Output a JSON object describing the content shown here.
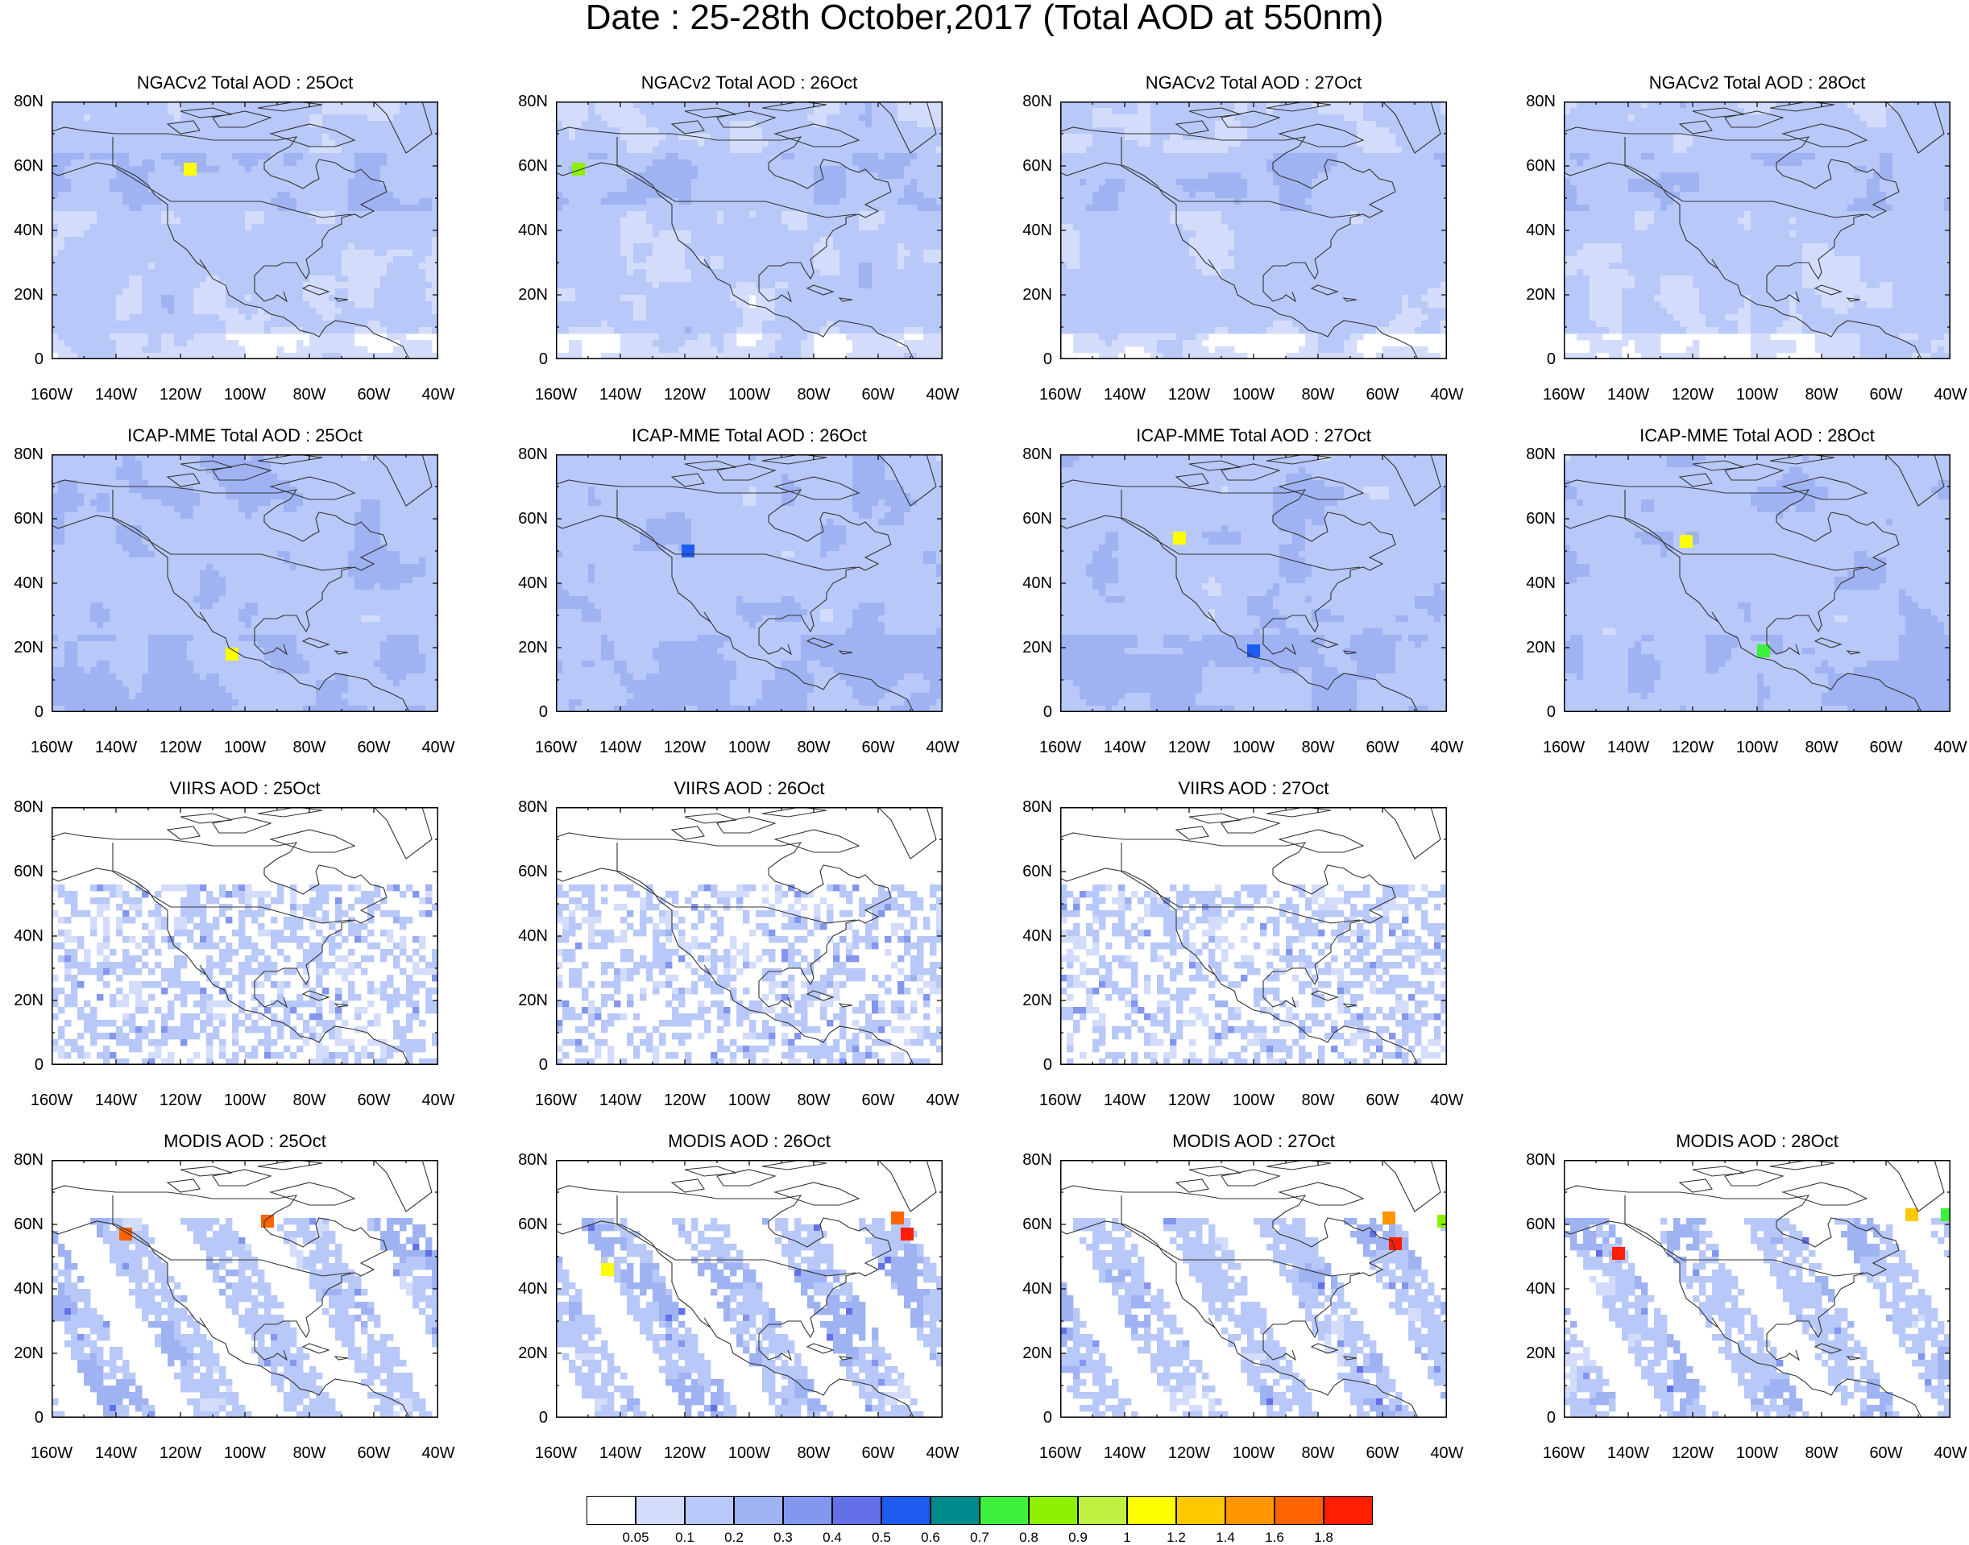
{
  "title": "Date : 25-28th October,2017 (Total AOD at 550nm)",
  "lat_ticks": [
    "80N",
    "60N",
    "40N",
    "20N",
    "0"
  ],
  "lon_ticks": [
    "160W",
    "140W",
    "120W",
    "100W",
    "80W",
    "60W",
    "40W"
  ],
  "panels": [
    {
      "row": 0,
      "col": 0,
      "title": "NGACv2 Total AOD : 25Oct",
      "dataset": "ngac",
      "day": 25
    },
    {
      "row": 0,
      "col": 1,
      "title": "NGACv2 Total AOD : 26Oct",
      "dataset": "ngac",
      "day": 26
    },
    {
      "row": 0,
      "col": 2,
      "title": "NGACv2 Total AOD : 27Oct",
      "dataset": "ngac",
      "day": 27
    },
    {
      "row": 0,
      "col": 3,
      "title": "NGACv2 Total AOD : 28Oct",
      "dataset": "ngac",
      "day": 28
    },
    {
      "row": 1,
      "col": 0,
      "title": "ICAP-MME Total AOD : 25Oct",
      "dataset": "icap",
      "day": 25
    },
    {
      "row": 1,
      "col": 1,
      "title": "ICAP-MME Total AOD : 26Oct",
      "dataset": "icap",
      "day": 26
    },
    {
      "row": 1,
      "col": 2,
      "title": "ICAP-MME Total AOD : 27Oct",
      "dataset": "icap",
      "day": 27
    },
    {
      "row": 1,
      "col": 3,
      "title": "ICAP-MME Total AOD : 28Oct",
      "dataset": "icap",
      "day": 28
    },
    {
      "row": 2,
      "col": 0,
      "title": "VIIRS AOD : 25Oct",
      "dataset": "viirs",
      "day": 25
    },
    {
      "row": 2,
      "col": 1,
      "title": "VIIRS AOD : 26Oct",
      "dataset": "viirs",
      "day": 26
    },
    {
      "row": 2,
      "col": 2,
      "title": "VIIRS AOD : 27Oct",
      "dataset": "viirs",
      "day": 27
    },
    {
      "row": 3,
      "col": 0,
      "title": "MODIS AOD : 25Oct",
      "dataset": "modis",
      "day": 25
    },
    {
      "row": 3,
      "col": 1,
      "title": "MODIS AOD : 26Oct",
      "dataset": "modis",
      "day": 26
    },
    {
      "row": 3,
      "col": 2,
      "title": "MODIS AOD : 27Oct",
      "dataset": "modis",
      "day": 27
    },
    {
      "row": 3,
      "col": 3,
      "title": "MODIS AOD : 28Oct",
      "dataset": "modis",
      "day": 28
    }
  ],
  "legend": {
    "labels": [
      "0.05",
      "0.1",
      "0.2",
      "0.3",
      "0.4",
      "0.5",
      "0.6",
      "0.7",
      "0.8",
      "0.9",
      "1",
      "1.2",
      "1.4",
      "1.6",
      "1.8"
    ],
    "colors": [
      "#ffffff",
      "#d3ddfb",
      "#b8c8f8",
      "#9fb3f3",
      "#8397ee",
      "#6470e8",
      "#1e5cf0",
      "#008c8c",
      "#3ef03e",
      "#8cf000",
      "#c0f040",
      "#ffff00",
      "#ffc800",
      "#ff9600",
      "#ff6400",
      "#ff1e00"
    ]
  },
  "hotspots": [
    {
      "panel": 0,
      "lon": -117,
      "lat": 59,
      "aod": 1.0
    },
    {
      "panel": 1,
      "lon": -153,
      "lat": 59,
      "aod": 0.8
    },
    {
      "panel": 5,
      "lon": -119,
      "lat": 50,
      "aod": 0.5
    },
    {
      "panel": 4,
      "lon": -104,
      "lat": 18,
      "aod": 1.0
    },
    {
      "panel": 6,
      "lon": -123,
      "lat": 54,
      "aod": 1.0
    },
    {
      "panel": 6,
      "lon": -100,
      "lat": 19,
      "aod": 0.5
    },
    {
      "panel": 7,
      "lon": -122,
      "lat": 53,
      "aod": 1.0
    },
    {
      "panel": 7,
      "lon": -98,
      "lat": 19,
      "aod": 0.7
    },
    {
      "panel": 12,
      "lon": -144,
      "lat": 46,
      "aod": 1.0
    },
    {
      "panel": 12,
      "lon": -51,
      "lat": 57,
      "aod": 1.8
    },
    {
      "panel": 12,
      "lon": -54,
      "lat": 62,
      "aod": 1.6
    },
    {
      "panel": 13,
      "lon": -56,
      "lat": 54,
      "aod": 1.8
    },
    {
      "panel": 13,
      "lon": -58,
      "lat": 62,
      "aod": 1.4
    },
    {
      "panel": 13,
      "lon": -41,
      "lat": 61,
      "aod": 0.8
    },
    {
      "panel": 11,
      "lon": -93,
      "lat": 61,
      "aod": 1.6
    },
    {
      "panel": 11,
      "lon": -137,
      "lat": 57,
      "aod": 1.6
    },
    {
      "panel": 14,
      "lon": -52,
      "lat": 63,
      "aod": 1.2
    },
    {
      "panel": 14,
      "lon": -41,
      "lat": 63,
      "aod": 0.7
    },
    {
      "panel": 14,
      "lon": -143,
      "lat": 51,
      "aod": 1.8
    }
  ]
}
